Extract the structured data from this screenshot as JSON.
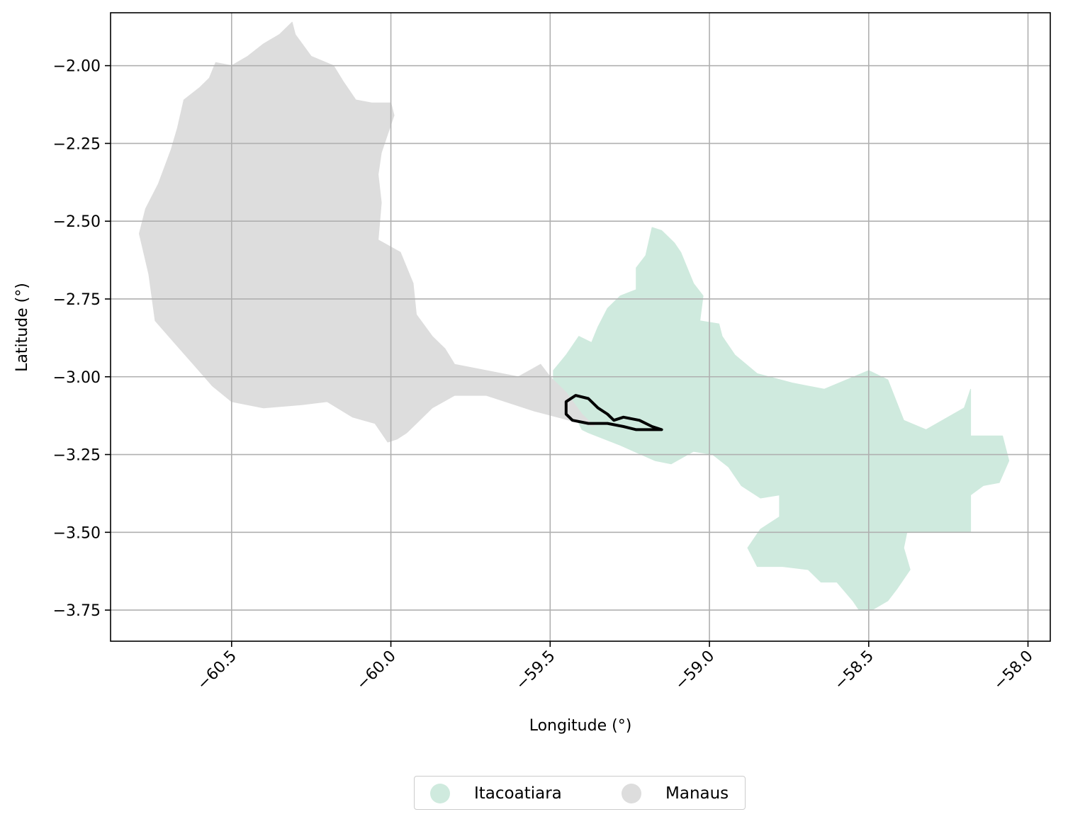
{
  "chart_data": {
    "type": "map",
    "xlabel": "Longitude (°)",
    "ylabel": "Latitude (°)",
    "xlim": [
      -60.88,
      -57.93
    ],
    "ylim": [
      -3.85,
      -1.83
    ],
    "x_ticks": [
      -60.5,
      -60.0,
      -59.5,
      -59.0,
      -58.5,
      -58.0
    ],
    "x_tick_labels": [
      "−60.5",
      "−60.0",
      "−59.5",
      "−59.0",
      "−58.5",
      "−58.0"
    ],
    "y_ticks": [
      -2.0,
      -2.25,
      -2.5,
      -2.75,
      -3.0,
      -3.25,
      -3.5,
      -3.75
    ],
    "y_tick_labels": [
      "−2.00",
      "−2.25",
      "−2.50",
      "−2.75",
      "−3.00",
      "−3.25",
      "−3.50",
      "−3.75"
    ],
    "grid": true,
    "legend_position": "bottom-center",
    "regions": [
      {
        "name": "Itacoatiara",
        "color": "#cfeade",
        "polygon": [
          [
            -59.49,
            -2.98
          ],
          [
            -59.45,
            -2.93
          ],
          [
            -59.41,
            -2.87
          ],
          [
            -59.37,
            -2.89
          ],
          [
            -59.35,
            -2.84
          ],
          [
            -59.32,
            -2.78
          ],
          [
            -59.28,
            -2.74
          ],
          [
            -59.23,
            -2.72
          ],
          [
            -59.23,
            -2.65
          ],
          [
            -59.2,
            -2.61
          ],
          [
            -59.18,
            -2.52
          ],
          [
            -59.15,
            -2.53
          ],
          [
            -59.11,
            -2.57
          ],
          [
            -59.09,
            -2.6
          ],
          [
            -59.05,
            -2.7
          ],
          [
            -59.02,
            -2.74
          ],
          [
            -59.03,
            -2.82
          ],
          [
            -58.97,
            -2.83
          ],
          [
            -58.96,
            -2.87
          ],
          [
            -58.92,
            -2.93
          ],
          [
            -58.85,
            -2.99
          ],
          [
            -58.74,
            -3.02
          ],
          [
            -58.64,
            -3.04
          ],
          [
            -58.5,
            -2.98
          ],
          [
            -58.44,
            -3.01
          ],
          [
            -58.39,
            -3.14
          ],
          [
            -58.32,
            -3.17
          ],
          [
            -58.2,
            -3.1
          ],
          [
            -58.18,
            -3.04
          ],
          [
            -58.18,
            -3.19
          ],
          [
            -58.08,
            -3.19
          ],
          [
            -58.06,
            -3.27
          ],
          [
            -58.09,
            -3.34
          ],
          [
            -58.14,
            -3.35
          ],
          [
            -58.18,
            -3.38
          ],
          [
            -58.18,
            -3.5
          ],
          [
            -58.38,
            -3.5
          ],
          [
            -58.39,
            -3.55
          ],
          [
            -58.37,
            -3.62
          ],
          [
            -58.41,
            -3.68
          ],
          [
            -58.44,
            -3.72
          ],
          [
            -58.49,
            -3.75
          ],
          [
            -58.53,
            -3.75
          ],
          [
            -58.55,
            -3.72
          ],
          [
            -58.6,
            -3.66
          ],
          [
            -58.65,
            -3.66
          ],
          [
            -58.69,
            -3.62
          ],
          [
            -58.77,
            -3.61
          ],
          [
            -58.85,
            -3.61
          ],
          [
            -58.88,
            -3.55
          ],
          [
            -58.84,
            -3.49
          ],
          [
            -58.78,
            -3.45
          ],
          [
            -58.78,
            -3.38
          ],
          [
            -58.84,
            -3.39
          ],
          [
            -58.9,
            -3.35
          ],
          [
            -58.94,
            -3.29
          ],
          [
            -58.99,
            -3.25
          ],
          [
            -59.05,
            -3.24
          ],
          [
            -59.12,
            -3.28
          ],
          [
            -59.17,
            -3.27
          ],
          [
            -59.28,
            -3.22
          ],
          [
            -59.38,
            -3.18
          ],
          [
            -59.4,
            -3.17
          ],
          [
            -59.42,
            -3.13
          ],
          [
            -59.46,
            -3.09
          ],
          [
            -59.49,
            -3.03
          ]
        ]
      },
      {
        "name": "Manaus",
        "color": "#dddddd",
        "polygon": [
          [
            -60.55,
            -1.99
          ],
          [
            -60.5,
            -2.0
          ],
          [
            -60.45,
            -1.97
          ],
          [
            -60.4,
            -1.93
          ],
          [
            -60.35,
            -1.9
          ],
          [
            -60.31,
            -1.86
          ],
          [
            -60.3,
            -1.9
          ],
          [
            -60.25,
            -1.97
          ],
          [
            -60.18,
            -2.0
          ],
          [
            -60.15,
            -2.05
          ],
          [
            -60.11,
            -2.11
          ],
          [
            -60.06,
            -2.12
          ],
          [
            -60.0,
            -2.12
          ],
          [
            -59.99,
            -2.16
          ],
          [
            -60.03,
            -2.28
          ],
          [
            -60.04,
            -2.35
          ],
          [
            -60.03,
            -2.44
          ],
          [
            -60.04,
            -2.56
          ],
          [
            -59.97,
            -2.6
          ],
          [
            -59.93,
            -2.7
          ],
          [
            -59.92,
            -2.8
          ],
          [
            -59.87,
            -2.87
          ],
          [
            -59.83,
            -2.91
          ],
          [
            -59.8,
            -2.96
          ],
          [
            -59.7,
            -2.98
          ],
          [
            -59.6,
            -3.0
          ],
          [
            -59.53,
            -2.96
          ],
          [
            -59.5,
            -3.0
          ],
          [
            -59.45,
            -3.05
          ],
          [
            -59.4,
            -3.12
          ],
          [
            -59.36,
            -3.16
          ],
          [
            -59.44,
            -3.14
          ],
          [
            -59.55,
            -3.11
          ],
          [
            -59.7,
            -3.06
          ],
          [
            -59.8,
            -3.06
          ],
          [
            -59.87,
            -3.1
          ],
          [
            -59.92,
            -3.15
          ],
          [
            -59.95,
            -3.18
          ],
          [
            -59.98,
            -3.2
          ],
          [
            -60.01,
            -3.21
          ],
          [
            -60.05,
            -3.15
          ],
          [
            -60.12,
            -3.13
          ],
          [
            -60.2,
            -3.08
          ],
          [
            -60.28,
            -3.09
          ],
          [
            -60.4,
            -3.1
          ],
          [
            -60.5,
            -3.08
          ],
          [
            -60.56,
            -3.03
          ],
          [
            -60.62,
            -2.96
          ],
          [
            -60.68,
            -2.89
          ],
          [
            -60.74,
            -2.82
          ],
          [
            -60.76,
            -2.67
          ],
          [
            -60.79,
            -2.54
          ],
          [
            -60.77,
            -2.46
          ],
          [
            -60.73,
            -2.38
          ],
          [
            -60.69,
            -2.27
          ],
          [
            -60.67,
            -2.2
          ],
          [
            -60.65,
            -2.11
          ],
          [
            -60.6,
            -2.07
          ],
          [
            -60.57,
            -2.04
          ]
        ]
      }
    ],
    "outline": {
      "color": "#000000",
      "polygon": [
        [
          -59.45,
          -3.08
        ],
        [
          -59.42,
          -3.06
        ],
        [
          -59.38,
          -3.07
        ],
        [
          -59.35,
          -3.1
        ],
        [
          -59.32,
          -3.12
        ],
        [
          -59.3,
          -3.14
        ],
        [
          -59.27,
          -3.13
        ],
        [
          -59.22,
          -3.14
        ],
        [
          -59.18,
          -3.16
        ],
        [
          -59.15,
          -3.17
        ],
        [
          -59.18,
          -3.17
        ],
        [
          -59.23,
          -3.17
        ],
        [
          -59.27,
          -3.16
        ],
        [
          -59.32,
          -3.15
        ],
        [
          -59.38,
          -3.15
        ],
        [
          -59.43,
          -3.14
        ],
        [
          -59.45,
          -3.12
        ]
      ]
    },
    "legend": [
      {
        "label": "Itacoatiara",
        "color": "#cfeade"
      },
      {
        "label": "Manaus",
        "color": "#dddddd"
      }
    ]
  }
}
